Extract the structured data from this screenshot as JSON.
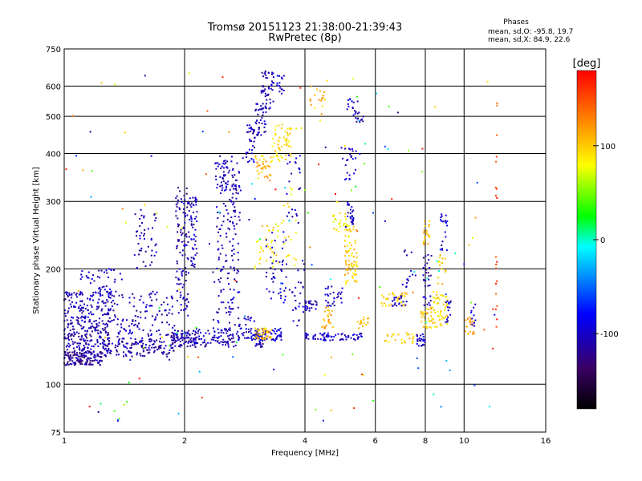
{
  "chart_data": {
    "type": "scatter",
    "title": "Tromsø 20151123 21:38:00-21:39:43",
    "subtitle": "RwPretec (8p)",
    "xlabel": "Frequency [MHz]",
    "ylabel": "Stationary phase Virtual Height [km]",
    "x_scale": "log",
    "y_scale": "log",
    "xlim": [
      1,
      16
    ],
    "ylim": [
      75,
      750
    ],
    "x_ticks": [
      1,
      2,
      4,
      6,
      8,
      10,
      16
    ],
    "y_ticks": [
      75,
      100,
      200,
      300,
      400,
      500,
      600,
      750
    ],
    "grid": true,
    "colorbar": {
      "label": "[deg]",
      "range": [
        -180,
        180
      ],
      "ticks": [
        100,
        0,
        -100
      ]
    },
    "legend_title": "Phases",
    "stats": [
      "mean, sd,O: -95.8, 19.7",
      "mean, sd,X:  84.9, 22.6"
    ],
    "clusters": [
      {
        "x": [
          1.0,
          1.25
        ],
        "y": [
          112,
          122
        ],
        "phase": -115,
        "n": 150
      },
      {
        "x": [
          1.0,
          1.3
        ],
        "y": [
          122,
          145
        ],
        "phase": -110,
        "n": 170
      },
      {
        "x": [
          1.0,
          1.35
        ],
        "y": [
          145,
          175
        ],
        "phase": -105,
        "n": 160
      },
      {
        "x": [
          1.1,
          1.4
        ],
        "y": [
          175,
          200
        ],
        "phase": -100,
        "n": 35
      },
      {
        "x": [
          1.25,
          1.9
        ],
        "y": [
          118,
          132
        ],
        "phase": -110,
        "n": 140
      },
      {
        "x": [
          1.35,
          1.9
        ],
        "y": [
          132,
          175
        ],
        "phase": -105,
        "n": 110
      },
      {
        "x": [
          1.5,
          1.7
        ],
        "y": [
          200,
          290
        ],
        "phase": -105,
        "n": 45
      },
      {
        "x": [
          1.85,
          2.15
        ],
        "y": [
          125,
          138
        ],
        "phase": -110,
        "n": 80
      },
      {
        "x": [
          1.9,
          2.05
        ],
        "y": [
          150,
          330
        ],
        "phase": -110,
        "n": 110
      },
      {
        "x": [
          2.05,
          2.15
        ],
        "y": [
          200,
          310
        ],
        "phase": -105,
        "n": 55
      },
      {
        "x": [
          2.1,
          2.7
        ],
        "y": [
          125,
          140
        ],
        "phase": -105,
        "n": 90
      },
      {
        "x": [
          2.35,
          2.75
        ],
        "y": [
          140,
          210
        ],
        "phase": -105,
        "n": 60
      },
      {
        "x": [
          2.4,
          2.75
        ],
        "y": [
          210,
          330
        ],
        "phase": -105,
        "n": 75
      },
      {
        "x": [
          2.35,
          2.8
        ],
        "y": [
          320,
          395
        ],
        "phase": -105,
        "n": 70
      },
      {
        "x": [
          2.7,
          3.0
        ],
        "y": [
          130,
          150
        ],
        "phase": -100,
        "n": 40
      },
      {
        "x": [
          2.85,
          3.0
        ],
        "y": [
          380,
          480
        ],
        "phase": -100,
        "n": 35
      },
      {
        "x": [
          3.0,
          3.15
        ],
        "y": [
          125,
          135
        ],
        "phase": -105,
        "n": 30
      },
      {
        "x": [
          3.0,
          3.5
        ],
        "y": [
          130,
          140
        ],
        "phase": -95,
        "n": 55
      },
      {
        "x": [
          3.0,
          3.2
        ],
        "y": [
          440,
          540
        ],
        "phase": -105,
        "n": 40
      },
      {
        "x": [
          3.1,
          3.35
        ],
        "y": [
          520,
          660
        ],
        "phase": -105,
        "n": 50
      },
      {
        "x": [
          3.2,
          3.6
        ],
        "y": [
          160,
          250
        ],
        "phase": -100,
        "n": 45
      },
      {
        "x": [
          3.4,
          3.55
        ],
        "y": [
          570,
          640
        ],
        "phase": -100,
        "n": 15
      },
      {
        "x": [
          3.0,
          3.3
        ],
        "y": [
          340,
          400
        ],
        "phase": 110,
        "n": 35
      },
      {
        "x": [
          3.3,
          3.7
        ],
        "y": [
          380,
          480
        ],
        "phase": 95,
        "n": 55
      },
      {
        "x": [
          3.0,
          3.45
        ],
        "y": [
          195,
          260
        ],
        "phase": 90,
        "n": 35
      },
      {
        "x": [
          3.0,
          3.3
        ],
        "y": [
          130,
          140
        ],
        "phase": 105,
        "n": 40
      },
      {
        "x": [
          3.5,
          3.8
        ],
        "y": [
          200,
          330
        ],
        "phase": 90,
        "n": 20
      },
      {
        "x": [
          3.6,
          3.9
        ],
        "y": [
          250,
          400
        ],
        "phase": -100,
        "n": 25
      },
      {
        "x": [
          3.7,
          4.0
        ],
        "y": [
          140,
          220
        ],
        "phase": -100,
        "n": 25
      },
      {
        "x": [
          4.0,
          4.3
        ],
        "y": [
          155,
          165
        ],
        "phase": -105,
        "n": 25
      },
      {
        "x": [
          4.0,
          5.6
        ],
        "y": [
          130,
          136
        ],
        "phase": -100,
        "n": 70
      },
      {
        "x": [
          4.4,
          4.7
        ],
        "y": [
          140,
          160
        ],
        "phase": 110,
        "n": 25
      },
      {
        "x": [
          4.5,
          5.0
        ],
        "y": [
          160,
          180
        ],
        "phase": -100,
        "n": 30
      },
      {
        "x": [
          4.7,
          5.1
        ],
        "y": [
          250,
          280
        ],
        "phase": 85,
        "n": 25
      },
      {
        "x": [
          5.0,
          5.4
        ],
        "y": [
          180,
          260
        ],
        "phase": 100,
        "n": 75
      },
      {
        "x": [
          5.1,
          5.3
        ],
        "y": [
          260,
          300
        ],
        "phase": -105,
        "n": 25
      },
      {
        "x": [
          4.9,
          5.5
        ],
        "y": [
          340,
          420
        ],
        "phase": -100,
        "n": 25
      },
      {
        "x": [
          5.1,
          5.5
        ],
        "y": [
          500,
          560
        ],
        "phase": -100,
        "n": 15
      },
      {
        "x": [
          5.3,
          5.6
        ],
        "y": [
          480,
          520
        ],
        "phase": -110,
        "n": 12
      },
      {
        "x": [
          4.1,
          4.5
        ],
        "y": [
          480,
          600
        ],
        "phase": 110,
        "n": 18
      },
      {
        "x": [
          5.4,
          5.8
        ],
        "y": [
          140,
          150
        ],
        "phase": 110,
        "n": 15
      },
      {
        "x": [
          6.2,
          7.2
        ],
        "y": [
          160,
          175
        ],
        "phase": 105,
        "n": 35
      },
      {
        "x": [
          6.3,
          7.5
        ],
        "y": [
          128,
          136
        ],
        "phase": 100,
        "n": 25
      },
      {
        "x": [
          6.5,
          7.2
        ],
        "y": [
          160,
          170
        ],
        "phase": -105,
        "n": 20
      },
      {
        "x": [
          7.0,
          7.7
        ],
        "y": [
          175,
          230
        ],
        "phase": -100,
        "n": 15
      },
      {
        "x": [
          7.6,
          8.0
        ],
        "y": [
          125,
          135
        ],
        "phase": -100,
        "n": 25
      },
      {
        "x": [
          7.8,
          8.3
        ],
        "y": [
          140,
          160
        ],
        "phase": 100,
        "n": 30
      },
      {
        "x": [
          7.9,
          8.2
        ],
        "y": [
          230,
          270
        ],
        "phase": 100,
        "n": 20
      },
      {
        "x": [
          7.9,
          8.3
        ],
        "y": [
          160,
          220
        ],
        "phase": -105,
        "n": 30
      },
      {
        "x": [
          8.3,
          9.1
        ],
        "y": [
          140,
          175
        ],
        "phase": 90,
        "n": 55
      },
      {
        "x": [
          8.6,
          9.0
        ],
        "y": [
          180,
          220
        ],
        "phase": 100,
        "n": 15
      },
      {
        "x": [
          8.7,
          9.1
        ],
        "y": [
          220,
          280
        ],
        "phase": -100,
        "n": 20
      },
      {
        "x": [
          9.0,
          9.3
        ],
        "y": [
          145,
          165
        ],
        "phase": -100,
        "n": 15
      },
      {
        "x": [
          10.0,
          10.6
        ],
        "y": [
          135,
          150
        ],
        "phase": 115,
        "n": 20
      },
      {
        "x": [
          10.4,
          10.7
        ],
        "y": [
          140,
          165
        ],
        "phase": -100,
        "n": 10
      },
      {
        "x": [
          12.0,
          12.1
        ],
        "y": [
          130,
          600
        ],
        "phase": 155,
        "n": 20
      },
      {
        "x": [
          1.0,
          12.0
        ],
        "y": [
          80,
          650
        ],
        "phase": 0,
        "n": 150
      }
    ]
  }
}
